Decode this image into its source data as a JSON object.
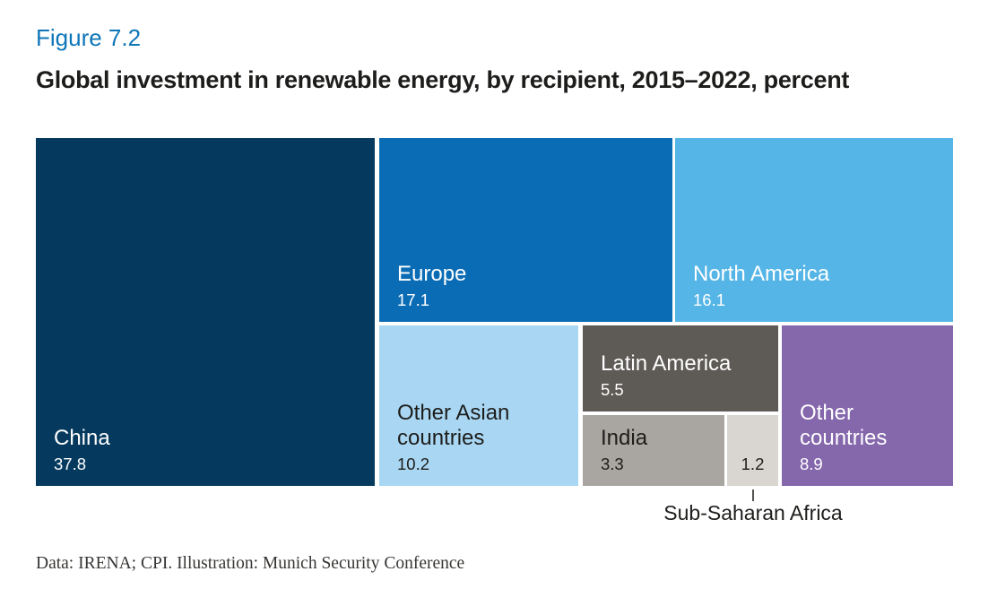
{
  "figure": {
    "label": "Figure 7.2",
    "title": "Global investment in renewable energy, by recipient, 2015–2022, percent",
    "source": "Data: IRENA; CPI. Illustration: Munich Security Conference"
  },
  "colors": {
    "background": "#ffffff",
    "figure_label": "#0f76b8",
    "title_text": "#1d1d1b",
    "source_text": "#383634",
    "callout_line": "#55524f",
    "callout_text": "#1d1d1b"
  },
  "chart_data": {
    "type": "treemap",
    "title": "Global investment in renewable energy, by recipient, 2015–2022, percent",
    "unit": "percent",
    "period": "2015–2022",
    "items": [
      {
        "name": "China",
        "value": "37.8",
        "color": "#053a5e",
        "text_color": "#ffffff"
      },
      {
        "name": "Europe",
        "value": "17.1",
        "color": "#0a6cb4",
        "text_color": "#ffffff"
      },
      {
        "name": "North America",
        "value": "16.1",
        "color": "#55b5e6",
        "text_color": "#ffffff"
      },
      {
        "name": "Other Asian countries",
        "value": "10.2",
        "color": "#a9d7f3",
        "text_color": "#1d1d1b"
      },
      {
        "name": "Latin America",
        "value": "5.5",
        "color": "#5e5a56",
        "text_color": "#ffffff"
      },
      {
        "name": "India",
        "value": "3.3",
        "color": "#a9a5a1",
        "text_color": "#1d1d1b"
      },
      {
        "name": "Sub-Saharan Africa",
        "value": "1.2",
        "color": "#d9d6d2",
        "text_color": "#1d1d1b"
      },
      {
        "name": "Other countries",
        "value": "8.9",
        "color": "#8567ac",
        "text_color": "#ffffff"
      }
    ]
  }
}
